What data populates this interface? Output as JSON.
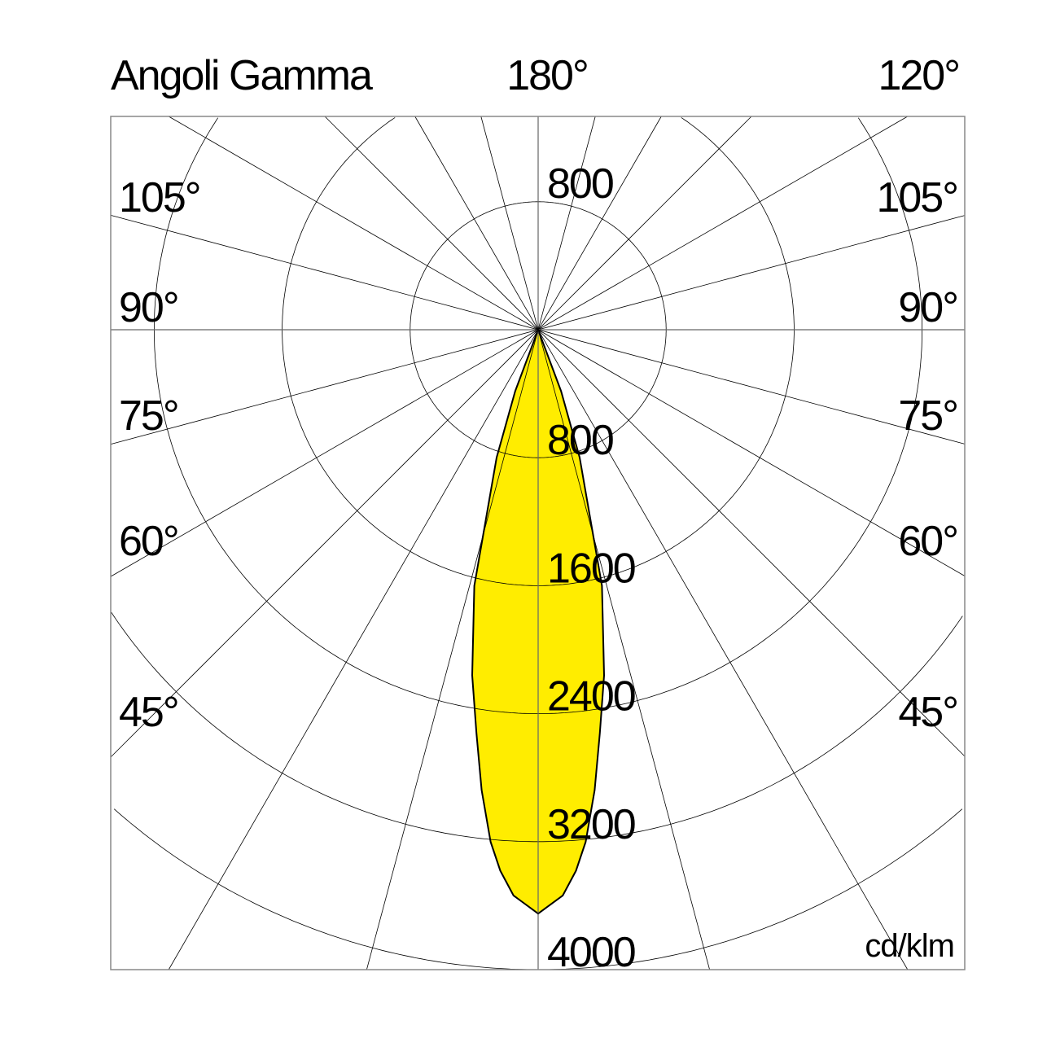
{
  "chart_data": {
    "type": "polar",
    "title": "Angoli Gamma",
    "unit": "cd/klm",
    "top_labels": [
      "180°",
      "120°"
    ],
    "left_angle_labels": [
      "105°",
      "90°",
      "75°",
      "60°",
      "45°"
    ],
    "right_angle_labels": [
      "105°",
      "90°",
      "75°",
      "60°",
      "45°"
    ],
    "radial_ticks": [
      800,
      1600,
      2400,
      3200,
      4000
    ],
    "radial_tick_labels": [
      "800",
      "1600",
      "2400",
      "3200",
      "4000"
    ],
    "upper_radial_label": "800",
    "rmax": 4000,
    "angular_grid_step_deg": 15,
    "grid": true,
    "fill_color": "#ffed00",
    "outline_color": "#000000",
    "series": [
      {
        "symmetric": true,
        "gamma_deg": [
          0,
          2.5,
          4,
          5.3,
          7,
          8.7,
          10.8,
          14,
          18,
          20.5,
          22.5
        ],
        "intensity": [
          3650,
          3540,
          3390,
          3215,
          2900,
          2550,
          2200,
          1650,
          840,
          410,
          0
        ]
      }
    ]
  }
}
